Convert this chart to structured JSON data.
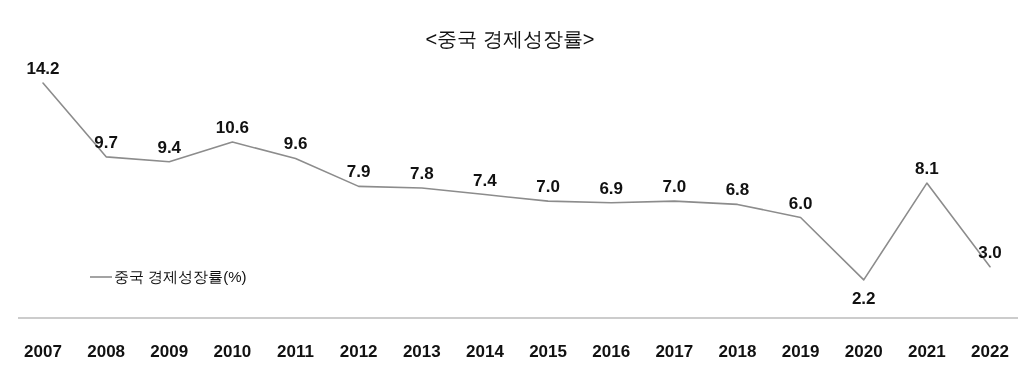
{
  "chart_data": {
    "type": "line",
    "title": "<중국 경제성장률>",
    "categories": [
      "2007",
      "2008",
      "2009",
      "2010",
      "2011",
      "2012",
      "2013",
      "2014",
      "2015",
      "2016",
      "2017",
      "2018",
      "2019",
      "2020",
      "2021",
      "2022"
    ],
    "series": [
      {
        "name": "중국 경제성장률(%)",
        "color": "#8c8c8c",
        "values": [
          14.2,
          9.7,
          9.4,
          10.6,
          9.6,
          7.9,
          7.8,
          7.4,
          7.0,
          6.9,
          7.0,
          6.8,
          6.0,
          2.2,
          8.1,
          3.0
        ],
        "value_labels": [
          "14.2",
          "9.7",
          "9.4",
          "10.6",
          "9.6",
          "7.9",
          "7.8",
          "7.4",
          "7.0",
          "6.9",
          "7.0",
          "6.8",
          "6.0",
          "2.2",
          "8.1",
          "3.0"
        ]
      }
    ],
    "legend": "bottom left",
    "marker": "none",
    "line_style": "solid"
  }
}
